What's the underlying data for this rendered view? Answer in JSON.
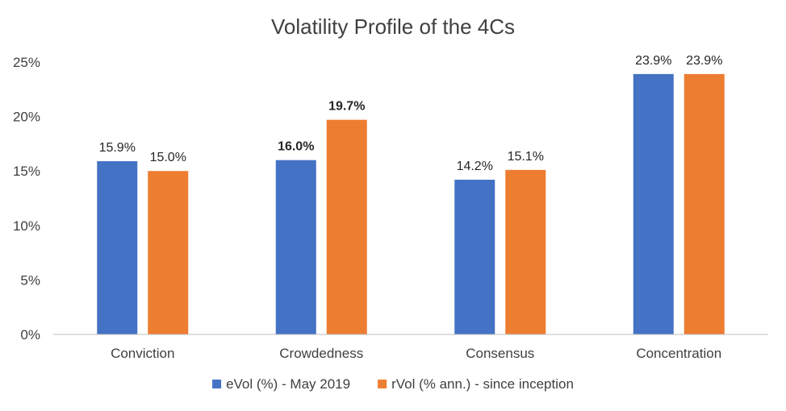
{
  "chart_data": {
    "type": "bar",
    "title": "Volatility Profile of the 4Cs",
    "categories": [
      "Conviction",
      "Crowdedness",
      "Consensus",
      "Concentration"
    ],
    "series": [
      {
        "name": "eVol (%) - May 2019",
        "color": "#4472C4",
        "values": [
          15.9,
          16.0,
          14.2,
          23.9
        ],
        "labels": [
          "15.9%",
          "16.0%",
          "14.2%",
          "23.9%"
        ],
        "bold": [
          false,
          true,
          false,
          false
        ]
      },
      {
        "name": "rVol (% ann.) - since inception",
        "color": "#ED7D31",
        "values": [
          15.0,
          19.7,
          15.1,
          23.9
        ],
        "labels": [
          "15.0%",
          "19.7%",
          "15.1%",
          "23.9%"
        ],
        "bold": [
          false,
          true,
          false,
          false
        ]
      }
    ],
    "ylim": [
      0,
      25
    ],
    "yticks": [
      "0%",
      "5%",
      "10%",
      "15%",
      "20%",
      "25%"
    ],
    "grid": false,
    "legend": "bottom",
    "xlabel": "",
    "ylabel": ""
  }
}
